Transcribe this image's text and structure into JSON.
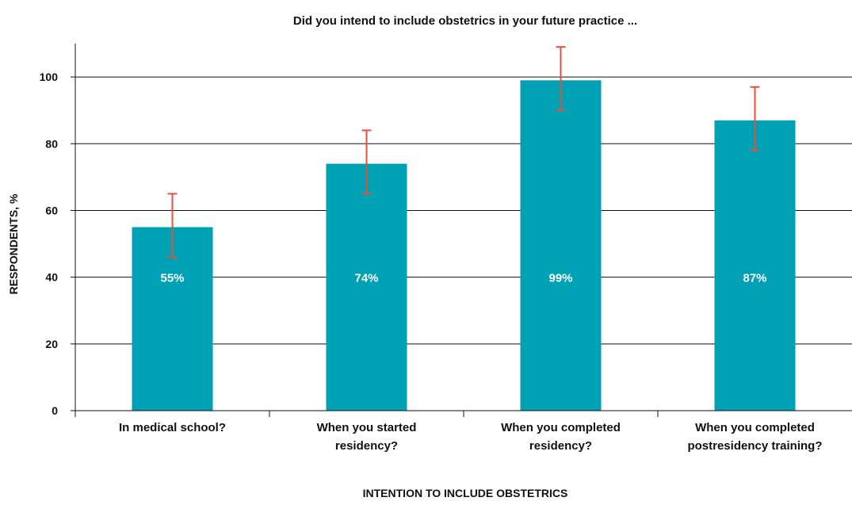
{
  "chart_data": {
    "type": "bar",
    "title": "Did you intend to include obstetrics in your future practice ...",
    "xlabel": "INTENTION TO INCLUDE OBSTETRICS",
    "ylabel": "RESPONDENTS, %",
    "ylim": [
      0,
      110
    ],
    "yticks": [
      0,
      20,
      40,
      60,
      80,
      100
    ],
    "grid": true,
    "categories": [
      [
        "In medical school?"
      ],
      [
        "When you started",
        "residency?"
      ],
      [
        "When you completed",
        "residency?"
      ],
      [
        "When you completed",
        "postresidency training?"
      ]
    ],
    "values": [
      55,
      74,
      99,
      87
    ],
    "value_labels": [
      "55%",
      "74%",
      "99%",
      "87%"
    ],
    "error_low": [
      46,
      65,
      90,
      78
    ],
    "error_high": [
      65,
      84,
      109,
      97
    ],
    "colors": {
      "bar": "#00a0b5",
      "error": "#e0533a",
      "grid": "#111111",
      "axis": "#111111"
    }
  }
}
